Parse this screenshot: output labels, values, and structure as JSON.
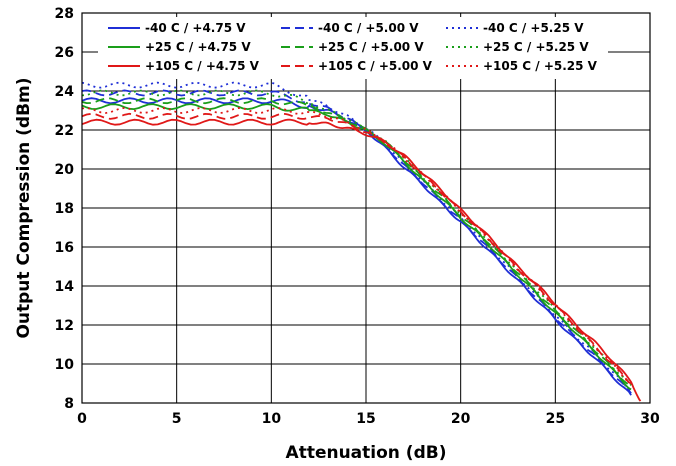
{
  "chart_data": {
    "type": "line",
    "xlabel": "Attenuation (dB)",
    "ylabel": "Output Compression (dBm)",
    "xlim": [
      0,
      30
    ],
    "ylim": [
      8,
      28
    ],
    "x_ticks": [
      0,
      5,
      10,
      15,
      20,
      25,
      30
    ],
    "y_ticks": [
      8,
      10,
      12,
      14,
      16,
      18,
      20,
      22,
      24,
      26,
      28
    ],
    "grid": true,
    "legend_placement": "top, inside plot, 3 columns",
    "colors": {
      "-40 C": "#1f2fd6",
      "+25 C": "#1a9e1a",
      "+105 C": "#e01818"
    },
    "series": [
      {
        "name": "-40 C / +4.75 V",
        "color": "#1f2fd6",
        "dash": "solid",
        "x": [
          0,
          2,
          4,
          6,
          8,
          10,
          11,
          12,
          13,
          14,
          15,
          16,
          17,
          18,
          19,
          20,
          21,
          22,
          23,
          24,
          25,
          26,
          27,
          28,
          29
        ],
        "y": [
          23.5,
          23.5,
          23.5,
          23.5,
          23.5,
          23.5,
          23.4,
          23.2,
          23.0,
          22.5,
          22.0,
          21.1,
          20.1,
          19.2,
          18.2,
          17.3,
          16.3,
          15.3,
          14.3,
          13.3,
          12.3,
          11.3,
          10.4,
          9.4,
          8.4
        ]
      },
      {
        "name": "-40 C / +5.00 V",
        "color": "#1f2fd6",
        "dash": "dashed",
        "x": [
          0,
          2,
          4,
          6,
          8,
          10,
          11,
          12,
          13,
          14,
          15,
          16,
          17,
          18,
          19,
          20,
          21,
          22,
          23,
          24,
          25,
          26,
          27,
          28,
          29
        ],
        "y": [
          23.9,
          23.9,
          23.9,
          23.9,
          23.9,
          23.9,
          23.7,
          23.4,
          23.1,
          22.6,
          22.0,
          21.2,
          20.2,
          19.3,
          18.3,
          17.4,
          16.4,
          15.4,
          14.4,
          13.4,
          12.4,
          11.4,
          10.5,
          9.5,
          8.5
        ]
      },
      {
        "name": "-40 C / +5.25 V",
        "color": "#1f2fd6",
        "dash": "dotted",
        "x": [
          0,
          2,
          4,
          6,
          8,
          10,
          11,
          12,
          13,
          14,
          15,
          16,
          17,
          18,
          19,
          20,
          21,
          22,
          23,
          24,
          25,
          26,
          27,
          28,
          29
        ],
        "y": [
          24.3,
          24.3,
          24.3,
          24.3,
          24.3,
          24.3,
          24.0,
          23.6,
          23.2,
          22.7,
          22.1,
          21.3,
          20.3,
          19.4,
          18.4,
          17.5,
          16.5,
          15.5,
          14.5,
          13.5,
          12.5,
          11.5,
          10.6,
          9.6,
          8.6
        ]
      },
      {
        "name": "+25 C / +4.75 V",
        "color": "#1a9e1a",
        "dash": "solid",
        "x": [
          0,
          2,
          4,
          6,
          8,
          10,
          11,
          12,
          13,
          14,
          15,
          16,
          17,
          18,
          19,
          20,
          21,
          22,
          23,
          24,
          25,
          26,
          27,
          28,
          29
        ],
        "y": [
          23.2,
          23.2,
          23.2,
          23.2,
          23.2,
          23.2,
          23.1,
          23.0,
          22.8,
          22.4,
          22.0,
          21.3,
          20.4,
          19.4,
          18.5,
          17.5,
          16.6,
          15.6,
          14.6,
          13.6,
          12.6,
          11.7,
          10.7,
          9.7,
          8.7
        ]
      },
      {
        "name": "+25 C / +5.00 V",
        "color": "#1a9e1a",
        "dash": "dashed",
        "x": [
          0,
          2,
          4,
          6,
          8,
          10,
          11,
          12,
          13,
          14,
          15,
          16,
          17,
          18,
          19,
          20,
          21,
          22,
          23,
          24,
          25,
          26,
          27,
          28,
          29
        ],
        "y": [
          23.5,
          23.5,
          23.5,
          23.5,
          23.5,
          23.5,
          23.4,
          23.2,
          22.9,
          22.5,
          22.0,
          21.4,
          20.5,
          19.5,
          18.6,
          17.6,
          16.7,
          15.7,
          14.7,
          13.7,
          12.7,
          11.8,
          10.8,
          9.8,
          8.8
        ]
      },
      {
        "name": "+25 C / +5.25 V",
        "color": "#1a9e1a",
        "dash": "dotted",
        "x": [
          0,
          2,
          4,
          6,
          8,
          10,
          11,
          12,
          13,
          14,
          15,
          16,
          17,
          18,
          19,
          20,
          21,
          22,
          23,
          24,
          25,
          26,
          27,
          28,
          29
        ],
        "y": [
          23.9,
          23.9,
          23.9,
          23.9,
          23.9,
          23.9,
          23.7,
          23.4,
          23.0,
          22.6,
          22.0,
          21.4,
          20.6,
          19.6,
          18.7,
          17.7,
          16.8,
          15.8,
          14.8,
          13.8,
          12.8,
          11.9,
          10.9,
          9.9,
          8.9
        ]
      },
      {
        "name": "+105 C / +4.75 V",
        "color": "#e01818",
        "dash": "solid",
        "x": [
          0,
          2,
          4,
          6,
          8,
          10,
          11,
          12,
          13,
          14,
          15,
          16,
          17,
          18,
          19,
          20,
          21,
          22,
          23,
          24,
          25,
          26,
          27,
          28,
          29,
          29.5
        ],
        "y": [
          22.4,
          22.4,
          22.4,
          22.4,
          22.4,
          22.4,
          22.4,
          22.4,
          22.3,
          22.1,
          21.8,
          21.4,
          20.7,
          19.8,
          18.9,
          17.9,
          17.0,
          16.0,
          15.0,
          14.1,
          13.1,
          12.1,
          11.2,
          10.2,
          9.1,
          8.1
        ]
      },
      {
        "name": "+105 C / +5.00 V",
        "color": "#e01818",
        "dash": "dashed",
        "x": [
          0,
          2,
          4,
          6,
          8,
          10,
          11,
          12,
          13,
          14,
          15,
          16,
          17,
          18,
          19,
          20,
          21,
          22,
          23,
          24,
          25,
          26,
          27,
          28,
          29
        ],
        "y": [
          22.7,
          22.7,
          22.7,
          22.7,
          22.7,
          22.7,
          22.7,
          22.7,
          22.6,
          22.3,
          21.9,
          21.4,
          20.6,
          19.7,
          18.8,
          17.8,
          16.9,
          15.9,
          14.9,
          14.0,
          13.0,
          12.0,
          11.0,
          10.0,
          9.0
        ]
      },
      {
        "name": "+105 C / +5.25 V",
        "color": "#e01818",
        "dash": "dotted",
        "x": [
          0,
          2,
          4,
          6,
          8,
          10,
          11,
          12,
          13,
          14,
          15,
          16,
          17,
          18,
          19,
          20,
          21,
          22,
          23,
          24,
          25,
          26,
          27,
          28,
          29
        ],
        "y": [
          23.0,
          23.0,
          23.0,
          23.0,
          23.0,
          23.0,
          23.0,
          22.9,
          22.7,
          22.4,
          22.0,
          21.4,
          20.6,
          19.7,
          18.8,
          17.8,
          16.9,
          15.9,
          14.9,
          14.0,
          13.0,
          12.0,
          11.0,
          10.0,
          9.0
        ]
      }
    ]
  }
}
